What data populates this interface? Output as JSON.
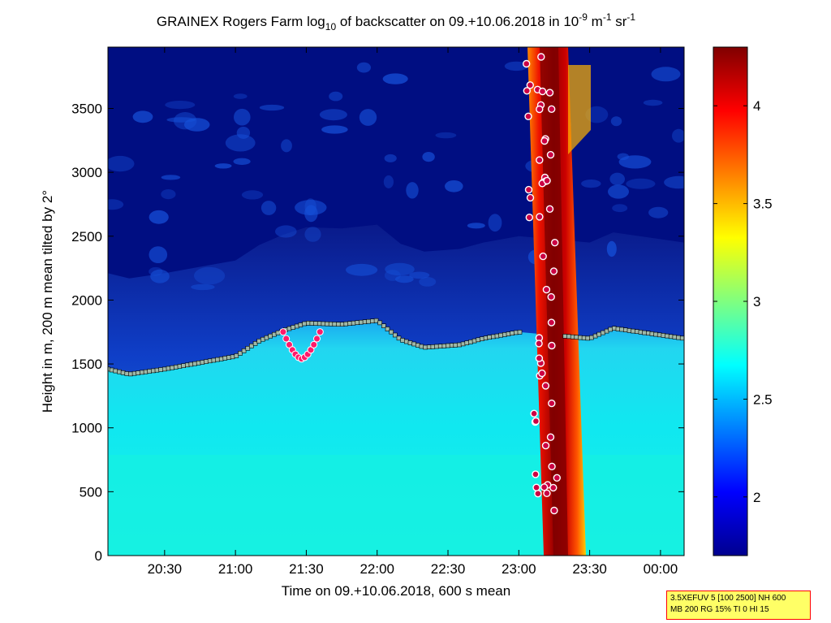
{
  "chart_data": {
    "type": "heatmap",
    "title": "GRAINEX Rogers Farm log",
    "title_sub": "10",
    "title_mid": " of backscatter on 09.+10.06.2018 in 10",
    "title_sup1": "-9",
    "title_unit1": " m",
    "title_sup2": "-1",
    "title_unit2": " sr",
    "title_sup3": "-1",
    "xlabel": "Time on 09.+10.06.2018, 600 s mean",
    "ylabel": "Height in m, 200 m mean tilted by 2°",
    "x_ticks": [
      "20:30",
      "21:00",
      "21:30",
      "22:00",
      "22:30",
      "23:00",
      "23:30",
      "00:00"
    ],
    "y_ticks": [
      "0",
      "500",
      "1000",
      "1500",
      "2000",
      "2500",
      "3000",
      "3500"
    ],
    "xlim": [
      "20:06",
      "00:10"
    ],
    "ylim": [
      0,
      3980
    ],
    "colorbar": {
      "ticks": [
        "2",
        "2.5",
        "3",
        "3.5",
        "4"
      ],
      "range": [
        1.7,
        4.3
      ],
      "colormap": "jet"
    },
    "features": {
      "boundary_layer_top_m": [
        {
          "t": "20:06",
          "h": 1460
        },
        {
          "t": "20:15",
          "h": 1420
        },
        {
          "t": "20:30",
          "h": 1460
        },
        {
          "t": "20:45",
          "h": 1510
        },
        {
          "t": "21:00",
          "h": 1560
        },
        {
          "t": "21:10",
          "h": 1680
        },
        {
          "t": "21:20",
          "h": 1760
        },
        {
          "t": "21:30",
          "h": 1820
        },
        {
          "t": "21:45",
          "h": 1810
        },
        {
          "t": "22:00",
          "h": 1840
        },
        {
          "t": "22:10",
          "h": 1690
        },
        {
          "t": "22:20",
          "h": 1630
        },
        {
          "t": "22:35",
          "h": 1650
        },
        {
          "t": "22:45",
          "h": 1700
        },
        {
          "t": "23:00",
          "h": 1750
        },
        {
          "t": "23:30",
          "h": 1700
        },
        {
          "t": "23:40",
          "h": 1780
        },
        {
          "t": "00:10",
          "h": 1700
        }
      ],
      "precipitation_band": {
        "start": "23:02",
        "end": "23:16"
      },
      "boundary_layer_dip": {
        "t": "21:28",
        "h": 1540
      }
    },
    "grid": false,
    "legend": "none"
  },
  "info_box": {
    "line1": "3.5XEFUV 5 [100 2500] NH 600",
    "line2": "MB 200 RG 15% TI 0 HI 15"
  }
}
